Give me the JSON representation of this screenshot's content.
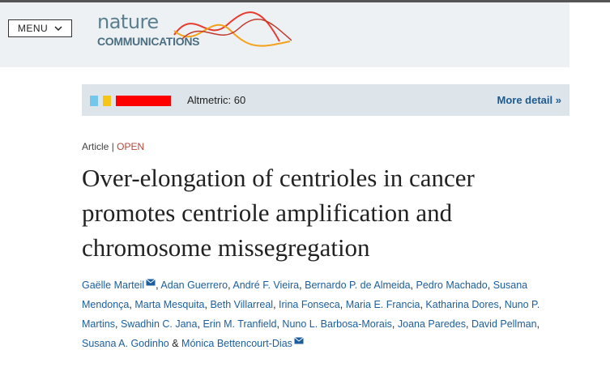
{
  "header": {
    "menu": "MENU",
    "logo": {
      "line1": "nature",
      "line2": "COMMUNICATIONS"
    }
  },
  "altmetric": {
    "label": "Altmetric: 60",
    "more": "More detail",
    "more_icon": "»"
  },
  "article": {
    "type": "Article",
    "separator": "|",
    "access": "OPEN",
    "title": "Over-elongation of centrioles in cancer promotes centriole amplification and chromosome missegregation",
    "author_separator": ",",
    "last_separator": "&",
    "authors": [
      {
        "name": "Gaëlle Marteil",
        "email_icon": true
      },
      {
        "name": "Adan Guerrero"
      },
      {
        "name": "André F. Vieira"
      },
      {
        "name": "Bernardo P. de Almeida"
      },
      {
        "name": "Pedro Machado"
      },
      {
        "name": "Susana Mendonça"
      },
      {
        "name": "Marta Mesquita"
      },
      {
        "name": "Beth Villarreal"
      },
      {
        "name": "Irina Fonseca"
      },
      {
        "name": "Maria E. Francia"
      },
      {
        "name": "Katharina Dores"
      },
      {
        "name": "Nuno P. Martins"
      },
      {
        "name": "Swadhin C. Jana"
      },
      {
        "name": "Erin M. Tranfield"
      },
      {
        "name": "Nuno L. Barbosa-Morais"
      },
      {
        "name": "Joana Paredes"
      },
      {
        "name": "David Pellman"
      },
      {
        "name": "Susana A. Godinho"
      },
      {
        "name": "Mónica Bettencourt-Dias",
        "email_icon": true
      }
    ]
  }
}
